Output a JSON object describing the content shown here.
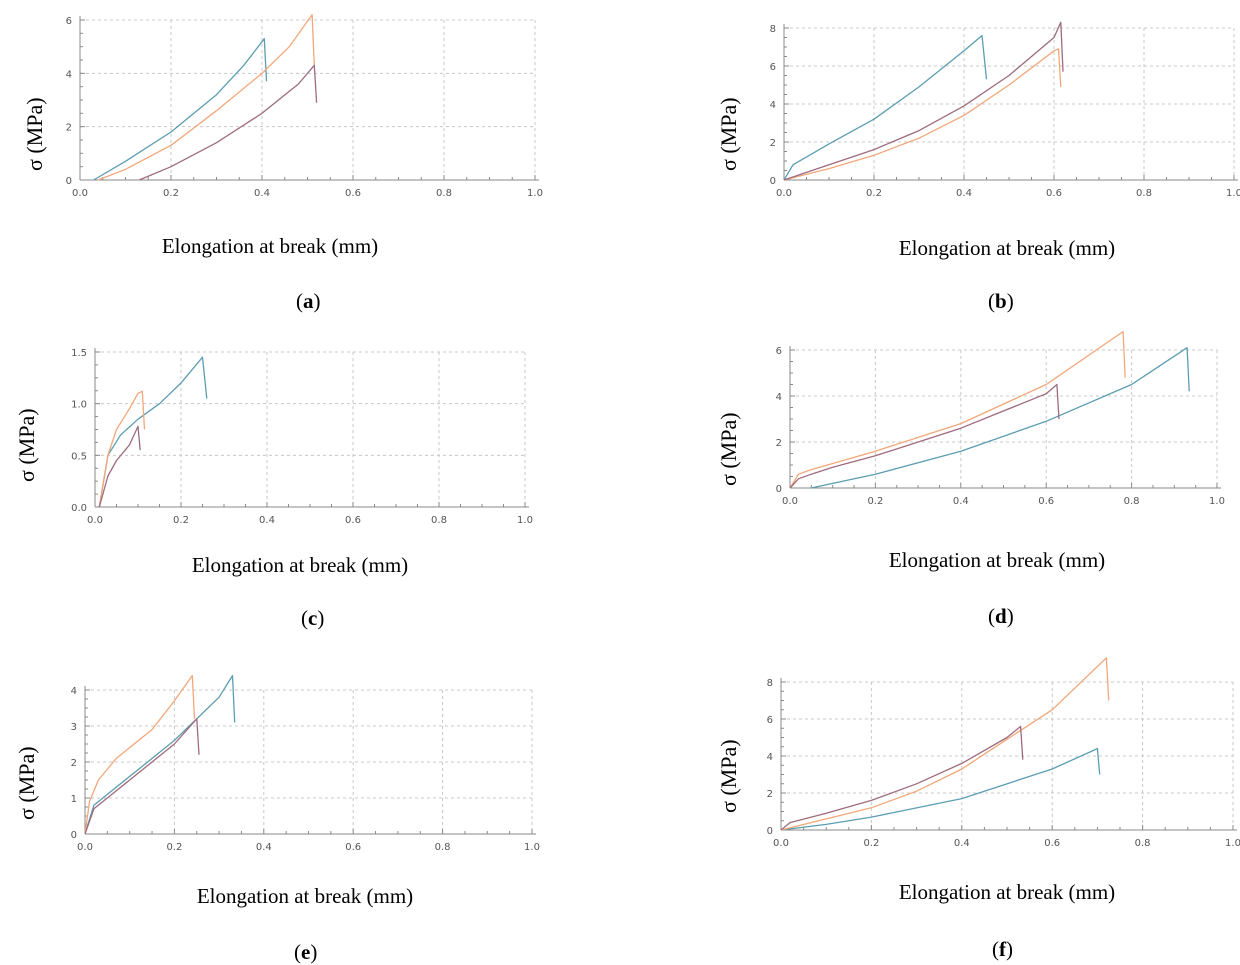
{
  "colors": {
    "blue": "#5b9db1",
    "orange": "#f2a77a",
    "mauve": "#9e6b7e",
    "grid": "#c8c8c8",
    "axis": "#8a8a8a",
    "tick_text": "#555555"
  },
  "chart_data": [
    {
      "id": "a",
      "type": "line",
      "ylabel": "σ (MPa)",
      "xlabel": "Elongation at break (mm)",
      "caption_letter": "a",
      "xlim": [
        0,
        1.0
      ],
      "ylim": [
        0,
        6
      ],
      "xticks": [
        "0.0",
        "0.2",
        "0.4",
        "0.6",
        "0.8",
        "1.0"
      ],
      "yticks": [
        "0",
        "2",
        "4",
        "6"
      ],
      "grid": true,
      "series": [
        {
          "color": "blue",
          "x": [
            0.03,
            0.1,
            0.2,
            0.3,
            0.36,
            0.405,
            0.41
          ],
          "y": [
            0,
            0.7,
            1.8,
            3.2,
            4.3,
            5.3,
            3.7
          ]
        },
        {
          "color": "orange",
          "x": [
            0.04,
            0.1,
            0.2,
            0.3,
            0.4,
            0.46,
            0.51,
            0.515
          ],
          "y": [
            0,
            0.4,
            1.3,
            2.6,
            4.0,
            5.0,
            6.2,
            4.3
          ]
        },
        {
          "color": "mauve",
          "x": [
            0.13,
            0.2,
            0.3,
            0.4,
            0.48,
            0.515,
            0.52
          ],
          "y": [
            0,
            0.5,
            1.4,
            2.5,
            3.6,
            4.3,
            2.9
          ]
        }
      ]
    },
    {
      "id": "b",
      "type": "line",
      "ylabel": "σ (MPa)",
      "xlabel": "Elongation at break (mm)",
      "caption_letter": "b",
      "xlim": [
        0,
        1.0
      ],
      "ylim": [
        0,
        8
      ],
      "xticks": [
        "0.0",
        "0.2",
        "0.4",
        "0.6",
        "0.8",
        "1.0"
      ],
      "yticks": [
        "0",
        "2",
        "4",
        "6",
        "8"
      ],
      "grid": true,
      "series": [
        {
          "color": "blue",
          "x": [
            0,
            0.02,
            0.1,
            0.2,
            0.3,
            0.4,
            0.44,
            0.45
          ],
          "y": [
            0,
            0.8,
            1.9,
            3.2,
            4.9,
            6.8,
            7.6,
            5.3
          ]
        },
        {
          "color": "orange",
          "x": [
            0,
            0.1,
            0.2,
            0.3,
            0.4,
            0.5,
            0.6,
            0.61,
            0.615
          ],
          "y": [
            0,
            0.6,
            1.3,
            2.2,
            3.4,
            5.0,
            6.8,
            6.9,
            4.9
          ]
        },
        {
          "color": "mauve",
          "x": [
            0,
            0.1,
            0.2,
            0.3,
            0.4,
            0.5,
            0.6,
            0.615,
            0.62
          ],
          "y": [
            0,
            0.8,
            1.6,
            2.6,
            3.9,
            5.5,
            7.5,
            8.3,
            5.7
          ]
        }
      ]
    },
    {
      "id": "c",
      "type": "line",
      "ylabel": "σ (MPa)",
      "xlabel": "Elongation at break (mm)",
      "caption_letter": "c",
      "xlim": [
        0,
        1.0
      ],
      "ylim": [
        0,
        1.5
      ],
      "xticks": [
        "0.0",
        "0.2",
        "0.4",
        "0.6",
        "0.8",
        "1.0"
      ],
      "yticks": [
        "0.0",
        "0.5",
        "1.0",
        "1.5"
      ],
      "grid": true,
      "series": [
        {
          "color": "blue",
          "x": [
            0.01,
            0.03,
            0.06,
            0.1,
            0.15,
            0.2,
            0.25,
            0.26
          ],
          "y": [
            0,
            0.5,
            0.7,
            0.85,
            1.0,
            1.2,
            1.45,
            1.05
          ]
        },
        {
          "color": "orange",
          "x": [
            0.01,
            0.03,
            0.05,
            0.08,
            0.1,
            0.11,
            0.115
          ],
          "y": [
            0,
            0.5,
            0.75,
            0.95,
            1.1,
            1.12,
            0.75
          ]
        },
        {
          "color": "mauve",
          "x": [
            0.01,
            0.03,
            0.05,
            0.08,
            0.1,
            0.105
          ],
          "y": [
            0,
            0.3,
            0.45,
            0.6,
            0.78,
            0.55
          ]
        }
      ]
    },
    {
      "id": "d",
      "type": "line",
      "ylabel": "σ (MPa)",
      "xlabel": "Elongation at break (mm)",
      "caption_letter": "d",
      "xlim": [
        0,
        1.0
      ],
      "ylim": [
        0,
        6
      ],
      "xticks": [
        "0.0",
        "0.2",
        "0.4",
        "0.6",
        "0.8",
        "1.0"
      ],
      "yticks": [
        "0",
        "2",
        "4",
        "6"
      ],
      "grid": true,
      "series": [
        {
          "color": "blue",
          "x": [
            0.05,
            0.1,
            0.2,
            0.4,
            0.6,
            0.8,
            0.93,
            0.935
          ],
          "y": [
            0,
            0.2,
            0.6,
            1.6,
            2.9,
            4.5,
            6.1,
            4.2
          ]
        },
        {
          "color": "orange",
          "x": [
            0,
            0.02,
            0.05,
            0.2,
            0.4,
            0.6,
            0.78,
            0.785
          ],
          "y": [
            0,
            0.6,
            0.8,
            1.6,
            2.8,
            4.5,
            6.8,
            4.8
          ]
        },
        {
          "color": "mauve",
          "x": [
            0,
            0.02,
            0.05,
            0.1,
            0.2,
            0.4,
            0.6,
            0.625,
            0.63
          ],
          "y": [
            0,
            0.4,
            0.6,
            0.9,
            1.4,
            2.6,
            4.1,
            4.5,
            3.0
          ]
        }
      ]
    },
    {
      "id": "e",
      "type": "line",
      "ylabel": "σ (MPa)",
      "xlabel": "Elongation at break (mm)",
      "caption_letter": "e",
      "xlim": [
        0,
        1.0
      ],
      "ylim": [
        0,
        4
      ],
      "xticks": [
        "0.0",
        "0.2",
        "0.4",
        "0.6",
        "0.8",
        "1.0"
      ],
      "yticks": [
        "0",
        "1",
        "2",
        "3",
        "4"
      ],
      "grid": true,
      "series": [
        {
          "color": "blue",
          "x": [
            0,
            0.02,
            0.05,
            0.1,
            0.2,
            0.3,
            0.33,
            0.335
          ],
          "y": [
            0,
            0.8,
            1.1,
            1.6,
            2.6,
            3.8,
            4.4,
            3.1
          ]
        },
        {
          "color": "orange",
          "x": [
            0,
            0.01,
            0.03,
            0.07,
            0.15,
            0.2,
            0.24,
            0.245
          ],
          "y": [
            0,
            0.9,
            1.5,
            2.1,
            2.9,
            3.7,
            4.4,
            3.2
          ]
        },
        {
          "color": "mauve",
          "x": [
            0,
            0.02,
            0.05,
            0.1,
            0.2,
            0.25,
            0.255
          ],
          "y": [
            0,
            0.7,
            1.0,
            1.5,
            2.5,
            3.2,
            2.2
          ]
        }
      ]
    },
    {
      "id": "f",
      "type": "line",
      "ylabel": "σ (MPa)",
      "xlabel": "Elongation at break (mm)",
      "caption_letter": "f",
      "xlim": [
        0,
        1.0
      ],
      "ylim": [
        0,
        8
      ],
      "xticks": [
        "0.0",
        "0.2",
        "0.4",
        "0.6",
        "0.8",
        "1.0"
      ],
      "yticks": [
        "0",
        "2",
        "4",
        "6",
        "8"
      ],
      "grid": true,
      "series": [
        {
          "color": "blue",
          "x": [
            0,
            0.1,
            0.2,
            0.4,
            0.6,
            0.7,
            0.705
          ],
          "y": [
            0,
            0.3,
            0.7,
            1.7,
            3.3,
            4.4,
            3.0
          ]
        },
        {
          "color": "orange",
          "x": [
            0,
            0.1,
            0.2,
            0.3,
            0.4,
            0.5,
            0.6,
            0.72,
            0.725
          ],
          "y": [
            0,
            0.6,
            1.2,
            2.1,
            3.3,
            4.9,
            6.5,
            9.3,
            7.0
          ]
        },
        {
          "color": "mauve",
          "x": [
            0,
            0.02,
            0.1,
            0.2,
            0.3,
            0.4,
            0.5,
            0.53,
            0.535
          ],
          "y": [
            0,
            0.4,
            0.9,
            1.6,
            2.5,
            3.6,
            5.0,
            5.6,
            3.8
          ]
        }
      ]
    }
  ]
}
